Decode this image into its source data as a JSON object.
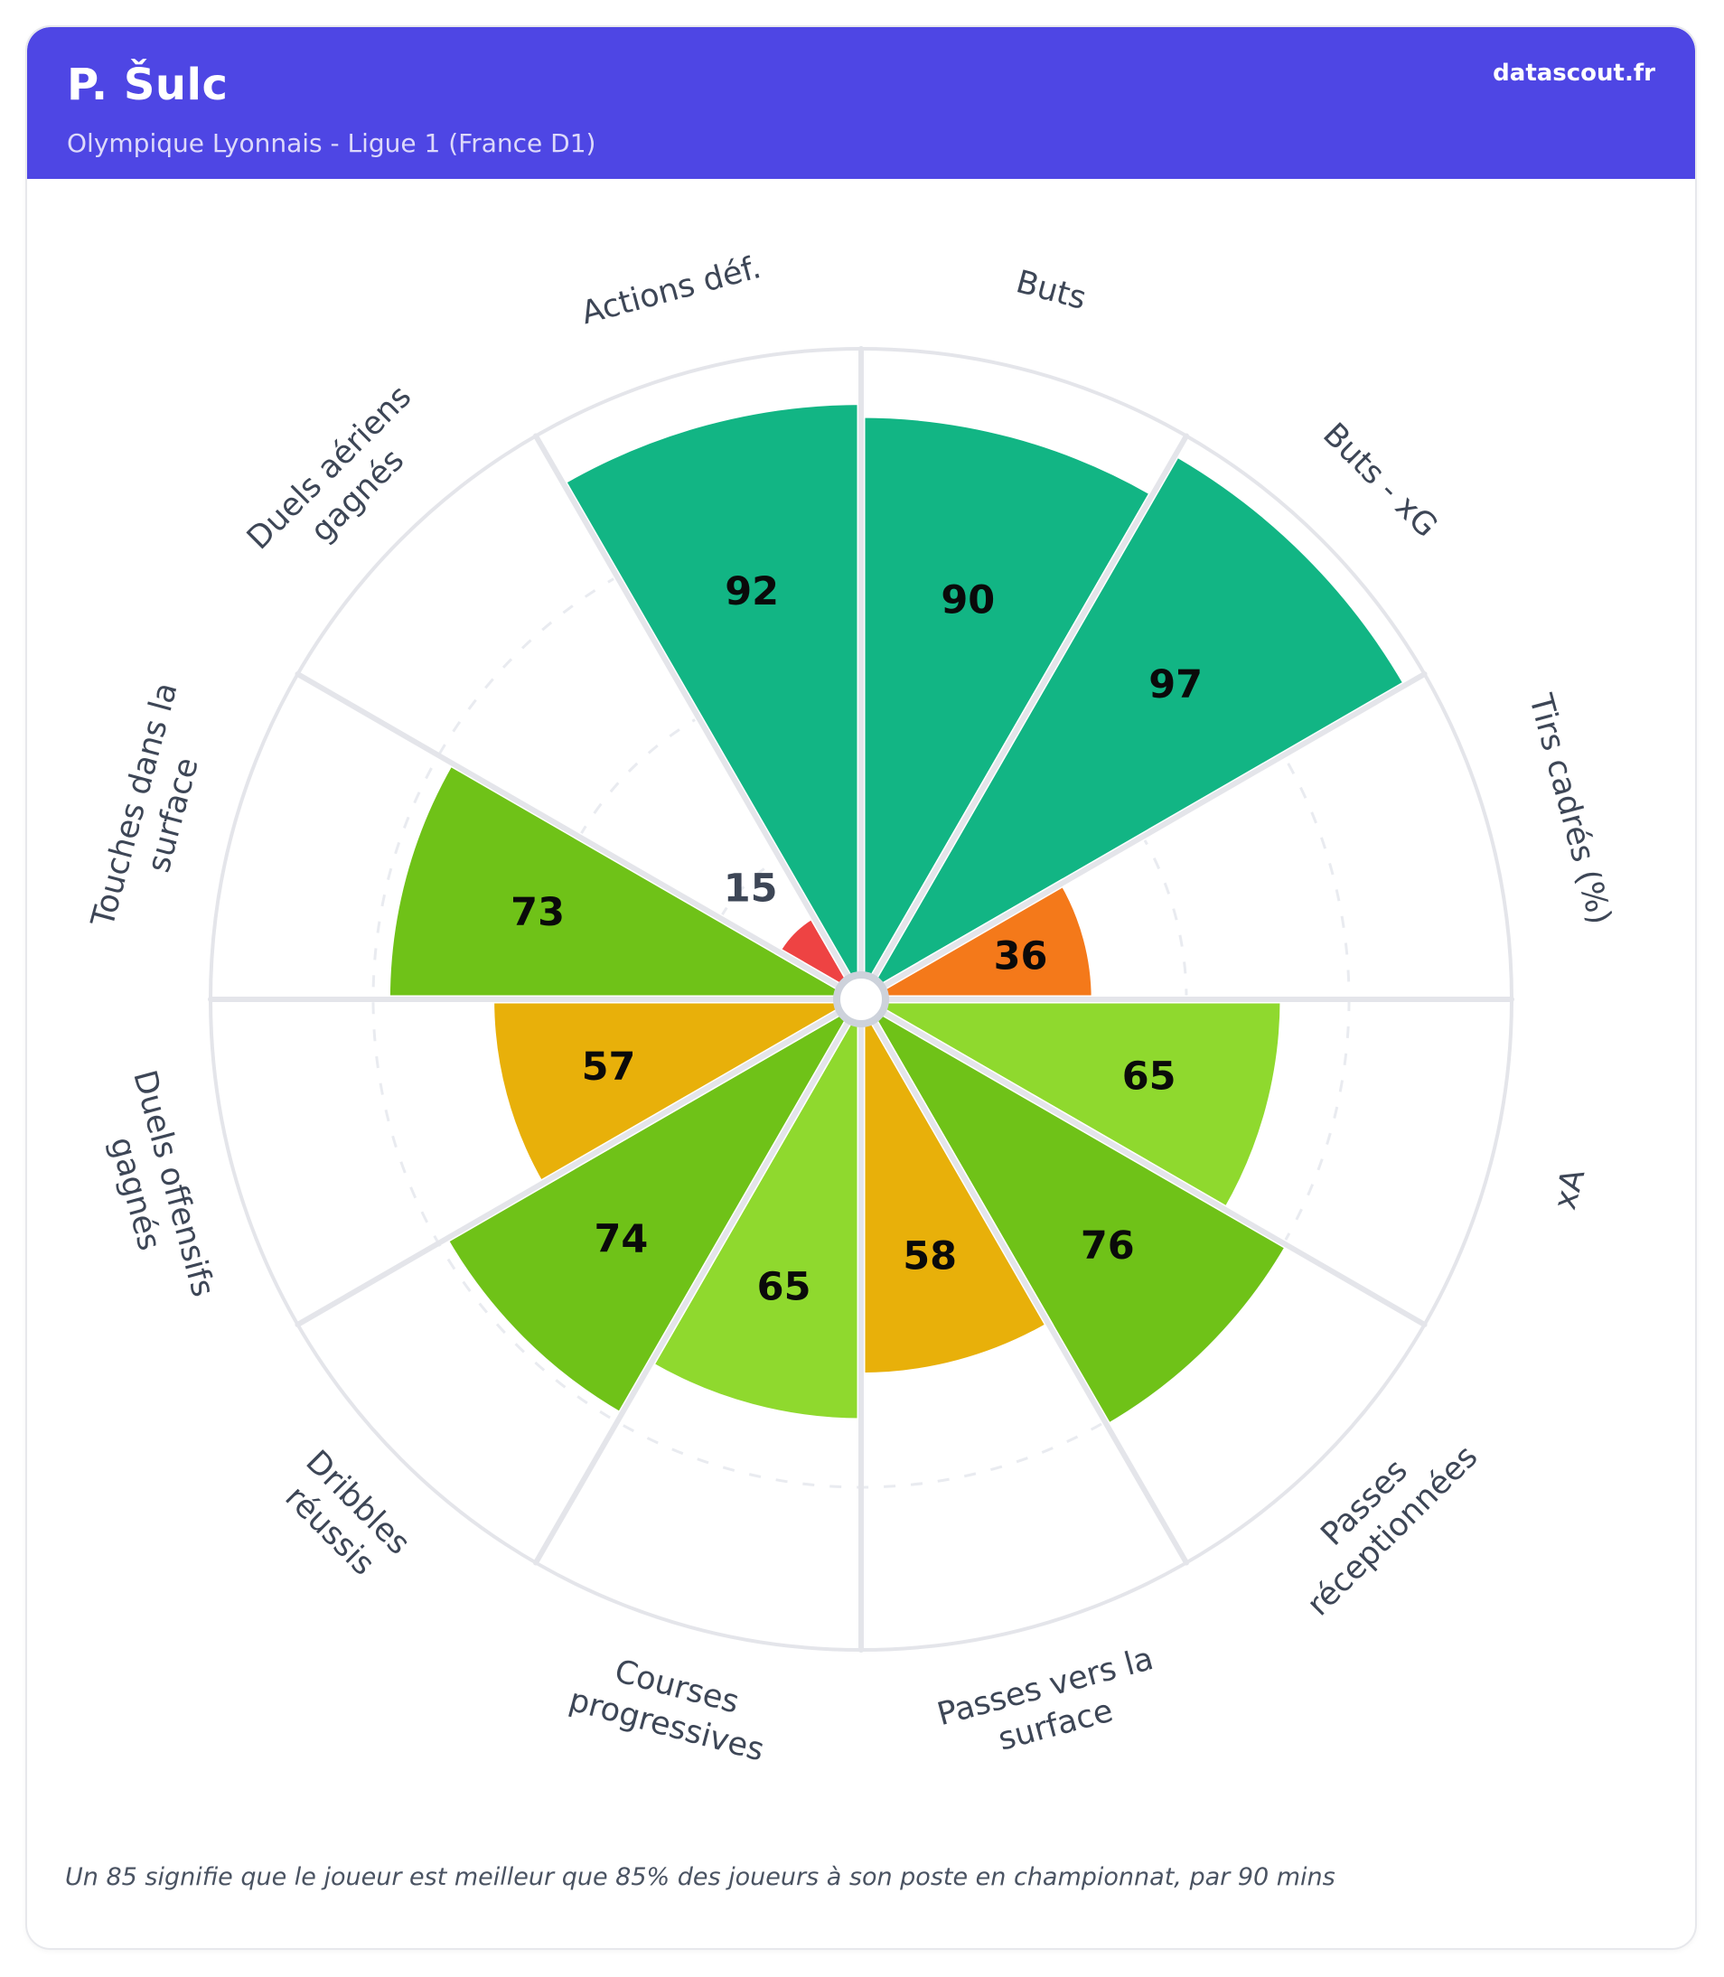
{
  "header": {
    "player_name": "P. Šulc",
    "team_league": "Olympique Lyonnais - Ligue 1 (France D1)",
    "brand": "datascout.fr"
  },
  "footer": {
    "note": "Un 85 signifie que le joueur est meilleur que 85% des joueurs à son poste en championnat, par 90 mins"
  },
  "colors": {
    "header_bg": "#4e46e4",
    "teal": "#12b584",
    "green": "#6fc218",
    "light_green": "#8fd92e",
    "gold": "#e8b00a",
    "orange": "#f4791a",
    "red": "#ee4343",
    "label_text": "#3d4656",
    "value_text": "#0a0a0a",
    "grid_line": "#e4e5ea",
    "dashed_ring": "#e9ebf0",
    "hole_border": "#cdd2db"
  },
  "chart_data": {
    "type": "bar",
    "subtype": "polar-pizza",
    "scale_min": 0,
    "scale_max": 100,
    "grid_rings_pct": [
      25,
      50,
      75
    ],
    "outer_ring_pct": 100,
    "start_angle_deg": 0,
    "direction": "clockwise",
    "slice_span_deg": 30,
    "categories": [
      "Buts",
      "Buts - xG",
      "Tirs cadrés (%)",
      "xA",
      "Passes réceptionnées",
      "Passes vers la surface",
      "Courses progressives",
      "Dribbles réussis",
      "Duels offensifs gagnés",
      "Touches dans la surface",
      "Duels aériens gagnés",
      "Actions déf."
    ],
    "values": [
      90,
      97,
      36,
      65,
      76,
      58,
      65,
      74,
      57,
      73,
      15,
      92
    ],
    "slices": [
      {
        "label": "Buts",
        "lines": [
          "Buts"
        ],
        "value": 90,
        "color": "#12b584"
      },
      {
        "label": "Buts - xG",
        "lines": [
          "Buts - xG"
        ],
        "value": 97,
        "color": "#12b584"
      },
      {
        "label": "Tirs cadrés (%)",
        "lines": [
          "Tirs cadrés (%)"
        ],
        "value": 36,
        "color": "#f4791a"
      },
      {
        "label": "xA",
        "lines": [
          "xA"
        ],
        "value": 65,
        "color": "#8fd92e"
      },
      {
        "label": "Passes réceptionnées",
        "lines": [
          "Passes",
          "réceptionnées"
        ],
        "value": 76,
        "color": "#6fc218"
      },
      {
        "label": "Passes vers la surface",
        "lines": [
          "Passes vers la",
          "surface"
        ],
        "value": 58,
        "color": "#e8b00a"
      },
      {
        "label": "Courses progressives",
        "lines": [
          "Courses",
          "progressives"
        ],
        "value": 65,
        "color": "#8fd92e"
      },
      {
        "label": "Dribbles réussis",
        "lines": [
          "Dribbles",
          "réussis"
        ],
        "value": 74,
        "color": "#6fc218"
      },
      {
        "label": "Duels offensifs gagnés",
        "lines": [
          "Duels offensifs",
          "gagnés"
        ],
        "value": 57,
        "color": "#e8b00a"
      },
      {
        "label": "Touches dans la surface",
        "lines": [
          "Touches dans la",
          "surface"
        ],
        "value": 73,
        "color": "#6fc218"
      },
      {
        "label": "Duels aériens gagnés",
        "lines": [
          "Duels aériens",
          "gagnés"
        ],
        "value": 15,
        "color": "#ee4343"
      },
      {
        "label": "Actions déf.",
        "lines": [
          "Actions déf."
        ],
        "value": 92,
        "color": "#12b584"
      }
    ],
    "title": "P. Šulc — Olympique Lyonnais - Ligue 1 (France D1)",
    "legend": "none",
    "grid": "dashed-rings"
  }
}
